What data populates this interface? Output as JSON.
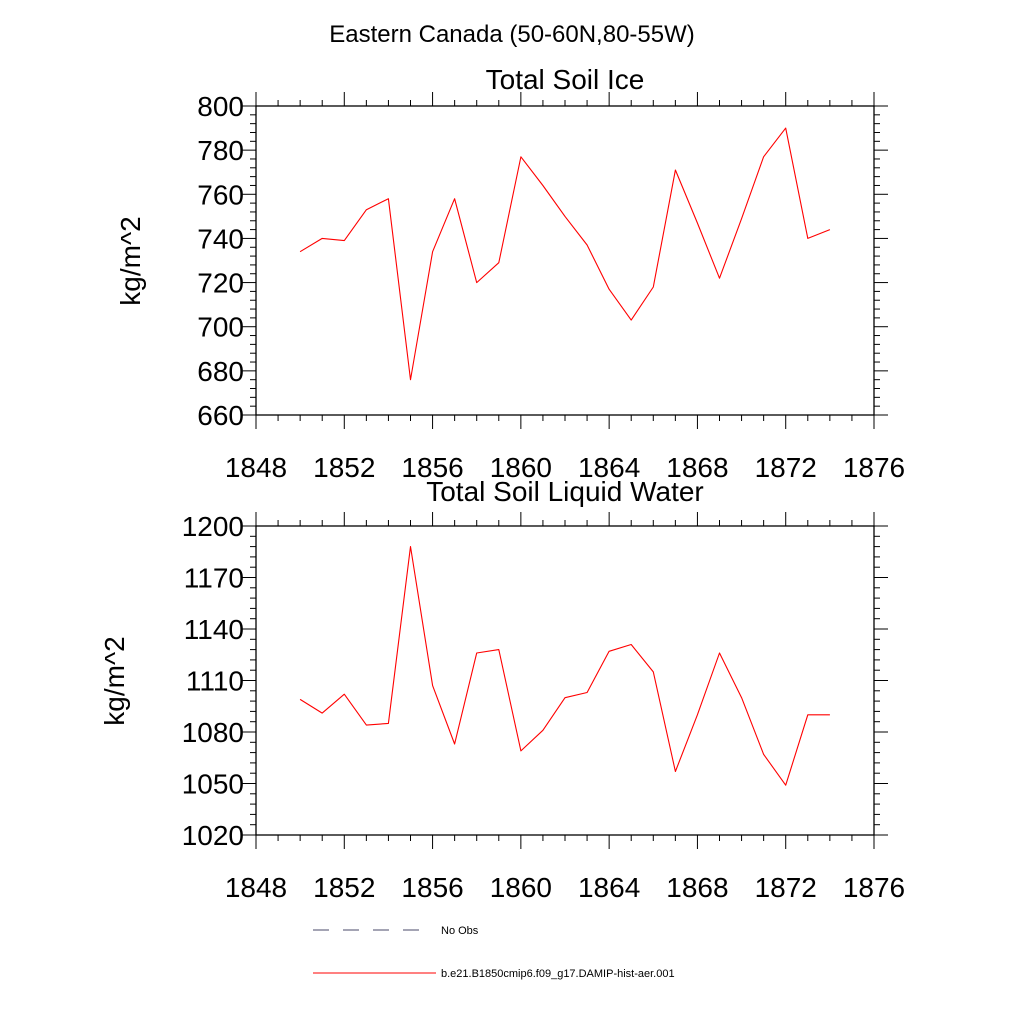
{
  "figure_title": "Eastern Canada (50-60N,80-55W)",
  "legend": {
    "entries": [
      {
        "label": "No Obs",
        "style": "dashed",
        "color": "#4a4a6a"
      },
      {
        "label": "b.e21.B1850cmip6.f09_g17.DAMIP-hist-aer.001",
        "style": "solid",
        "color": "#ff0000"
      }
    ]
  },
  "chart_data": [
    {
      "type": "line",
      "title": "Total Soil Ice",
      "xlabel": "",
      "ylabel": "kg/m^2",
      "xlim": [
        1848,
        1876
      ],
      "ylim": [
        660,
        800
      ],
      "xticks": [
        1848,
        1852,
        1856,
        1860,
        1864,
        1868,
        1872,
        1876
      ],
      "yticks": [
        660,
        680,
        700,
        720,
        740,
        760,
        780,
        800
      ],
      "grid": false,
      "series": [
        {
          "color": "#ff0000",
          "x": [
            1850,
            1851,
            1852,
            1853,
            1854,
            1855,
            1856,
            1857,
            1858,
            1859,
            1860,
            1861,
            1862,
            1863,
            1864,
            1865,
            1866,
            1867,
            1868,
            1869,
            1870,
            1871,
            1872,
            1873,
            1874
          ],
          "values": [
            734,
            740,
            739,
            753,
            758,
            676,
            734,
            758,
            720,
            729,
            777,
            764,
            750,
            737,
            717,
            703,
            718,
            771,
            747,
            722,
            749,
            777,
            790,
            740,
            744
          ]
        }
      ]
    },
    {
      "type": "line",
      "title": "Total Soil Liquid Water",
      "xlabel": "",
      "ylabel": "kg/m^2",
      "xlim": [
        1848,
        1876
      ],
      "ylim": [
        1020,
        1200
      ],
      "xticks": [
        1848,
        1852,
        1856,
        1860,
        1864,
        1868,
        1872,
        1876
      ],
      "yticks": [
        1020,
        1050,
        1080,
        1110,
        1140,
        1170,
        1200
      ],
      "grid": false,
      "series": [
        {
          "color": "#ff0000",
          "x": [
            1850,
            1851,
            1852,
            1853,
            1854,
            1855,
            1856,
            1857,
            1858,
            1859,
            1860,
            1861,
            1862,
            1863,
            1864,
            1865,
            1866,
            1867,
            1868,
            1869,
            1870,
            1871,
            1872,
            1873,
            1874
          ],
          "values": [
            1099,
            1091,
            1102,
            1084,
            1085,
            1188,
            1107,
            1073,
            1126,
            1128,
            1069,
            1081,
            1100,
            1103,
            1127,
            1131,
            1115,
            1057,
            1090,
            1126,
            1100,
            1067,
            1049,
            1090,
            1090
          ]
        }
      ]
    }
  ]
}
